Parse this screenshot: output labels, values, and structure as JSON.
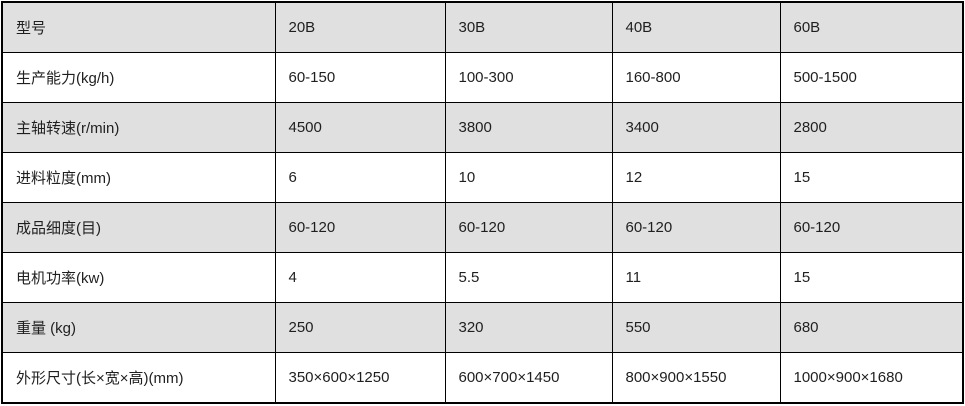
{
  "colors": {
    "shaded_row": "#e0e0e0",
    "plain_row": "#ffffff",
    "border": "#000000",
    "text": "#1f1f1f"
  },
  "chart_data": {
    "type": "table",
    "columns": [
      "型号",
      "20B",
      "30B",
      "40B",
      "60B"
    ],
    "rows": [
      [
        "生产能力(kg/h)",
        "60-150",
        "100-300",
        "160-800",
        "500-1500"
      ],
      [
        "主轴转速(r/min)",
        "4500",
        "3800",
        "3400",
        "2800"
      ],
      [
        "进料粒度(mm)",
        "6",
        "10",
        "12",
        "15"
      ],
      [
        "成品细度(目)",
        "60-120",
        "60-120",
        "60-120",
        "60-120"
      ],
      [
        "电机功率(kw)",
        "4",
        "5.5",
        "11",
        "15"
      ],
      [
        "重量 (kg)",
        "250",
        "320",
        "550",
        "680"
      ],
      [
        "外形尺寸(长×宽×高)(mm)",
        "350×600×1250",
        "600×700×1450",
        "800×900×1550",
        "1000×900×1680"
      ]
    ]
  }
}
